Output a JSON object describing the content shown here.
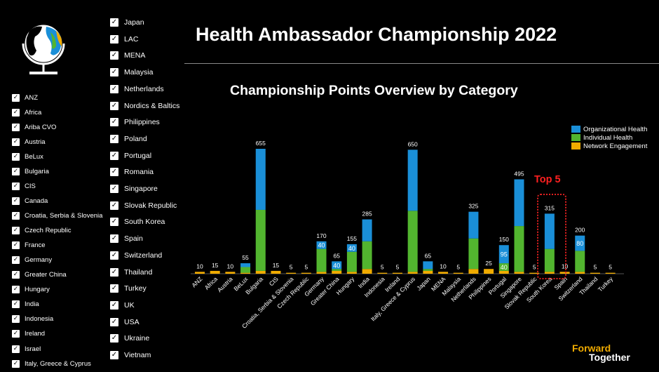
{
  "page": {
    "title": "Health Ambassador Championship 2022",
    "chart_title": "Championship Points Overview by Category",
    "top5_label": "Top 5",
    "brand_line1": "Forward",
    "brand_line2": "Together"
  },
  "filters_left": [
    "ANZ",
    "Africa",
    "Ariba CVO",
    "Austria",
    "BeLux",
    "Bulgaria",
    "CIS",
    "Canada",
    "Croatia, Serbia & Slovenia",
    "Czech Republic",
    "France",
    "Germany",
    "Greater China",
    "Hungary",
    "India",
    "Indonesia",
    "Ireland",
    "Israel",
    "Italy, Greece & Cyprus"
  ],
  "filters_right": [
    "Japan",
    "LAC",
    "MENA",
    "Malaysia",
    "Netherlands",
    "Nordics & Baltics",
    "Philippines",
    "Poland",
    "Portugal",
    "Romania",
    "Singapore",
    "Slovak Republic",
    "South Korea",
    "Spain",
    "Switzerland",
    "Thailand",
    "Turkey",
    "UK",
    "USA",
    "Ukraine",
    "Vietnam"
  ],
  "checkbox_symbol": "✓",
  "colors": {
    "organizational": "#1a8fd8",
    "individual": "#52b52f",
    "network": "#f0ab00",
    "top5": "#ff2020"
  },
  "chart_data": {
    "type": "bar",
    "stacked": true,
    "title": "Championship Points Overview by Category",
    "xlabel": "",
    "ylabel": "",
    "legend_position": "top-right",
    "categories": [
      "ANZ",
      "Africa",
      "Austria",
      "BeLux",
      "Bulgaria",
      "CIS",
      "Croatia, Serbia & Slovenia",
      "Czech Republic",
      "Germany",
      "Greater China",
      "Hungary",
      "India",
      "Indonesia",
      "Ireland",
      "Italy, Greece & Cyprus",
      "Japan",
      "MENA",
      "Malaysia",
      "Netherlands",
      "Philippines",
      "Portugal",
      "Singapore",
      "Slovak Republic",
      "South Korea",
      "Spain",
      "Switzerland",
      "Thailand",
      "Turkey"
    ],
    "series": [
      {
        "name": "Network Engagement",
        "color": "#f0ab00",
        "values": [
          10,
          15,
          10,
          5,
          15,
          15,
          5,
          5,
          10,
          15,
          10,
          25,
          5,
          5,
          10,
          15,
          10,
          5,
          25,
          25,
          15,
          10,
          5,
          10,
          10,
          10,
          5,
          5
        ]
      },
      {
        "name": "Individual Health",
        "color": "#52b52f",
        "values": [
          0,
          0,
          0,
          30,
          320,
          0,
          0,
          0,
          120,
          10,
          105,
          145,
          0,
          0,
          320,
          10,
          0,
          0,
          160,
          0,
          40,
          240,
          0,
          120,
          0,
          110,
          0,
          0
        ]
      },
      {
        "name": "Organizational Health",
        "color": "#1a8fd8",
        "values": [
          0,
          0,
          0,
          20,
          320,
          0,
          0,
          0,
          40,
          40,
          40,
          115,
          0,
          0,
          320,
          40,
          0,
          0,
          140,
          0,
          95,
          245,
          0,
          185,
          0,
          80,
          0,
          0
        ]
      }
    ],
    "totals": [
      10,
      15,
      10,
      55,
      655,
      15,
      5,
      5,
      170,
      65,
      155,
      285,
      5,
      5,
      650,
      65,
      10,
      5,
      325,
      25,
      150,
      495,
      5,
      315,
      10,
      200,
      5,
      5
    ],
    "segment_labels": [
      {
        "category": "Germany",
        "series": "Organizational Health",
        "text": "40"
      },
      {
        "category": "Greater China",
        "series": "Organizational Health",
        "text": "40"
      },
      {
        "category": "Hungary",
        "series": "Organizational Health",
        "text": "40"
      },
      {
        "category": "Portugal",
        "series": "Organizational Health",
        "text": "95"
      },
      {
        "category": "Portugal",
        "series": "Individual Health",
        "text": "40"
      },
      {
        "category": "Switzerland",
        "series": "Organizational Health",
        "text": "80"
      }
    ],
    "ylim": [
      0,
      700
    ],
    "grid": false,
    "highlighted": [
      "South Korea"
    ]
  }
}
